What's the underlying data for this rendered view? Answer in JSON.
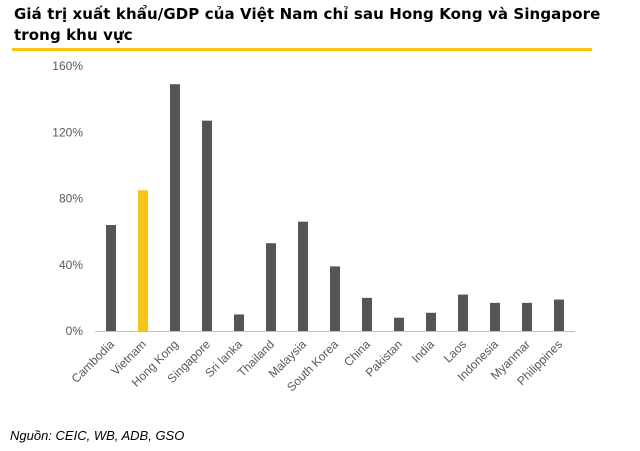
{
  "title": "Giá trị xuất khẩu/GDP của Việt Nam chỉ sau Hong Kong và Singapore trong khu vực",
  "source": "Nguồn: CEIC, WB, ADB, GSO",
  "colors": {
    "accent_rule": "#F5C518",
    "bar_default": "#555555",
    "bar_highlight": "#F5C518",
    "axis_text": "#595959",
    "axis_line": "#BFBFBF"
  },
  "chart_data": {
    "type": "bar",
    "title": "",
    "xlabel": "",
    "ylabel": "",
    "ylim": [
      0,
      160
    ],
    "yticks": [
      "0%",
      "40%",
      "80%",
      "120%",
      "160%"
    ],
    "grid": false,
    "highlight_category": "Vietnam",
    "categories": [
      "Cambodia",
      "Vietnam",
      "Hong Kong",
      "Singapore",
      "Sri lanka",
      "Thailand",
      "Malaysia",
      "South Korea",
      "China",
      "Pakistan",
      "India",
      "Laos",
      "Indonesia",
      "Myanmar",
      "Philippines"
    ],
    "values": [
      64,
      85,
      149,
      127,
      10,
      53,
      66,
      39,
      20,
      8,
      11,
      22,
      17,
      17,
      19
    ]
  }
}
